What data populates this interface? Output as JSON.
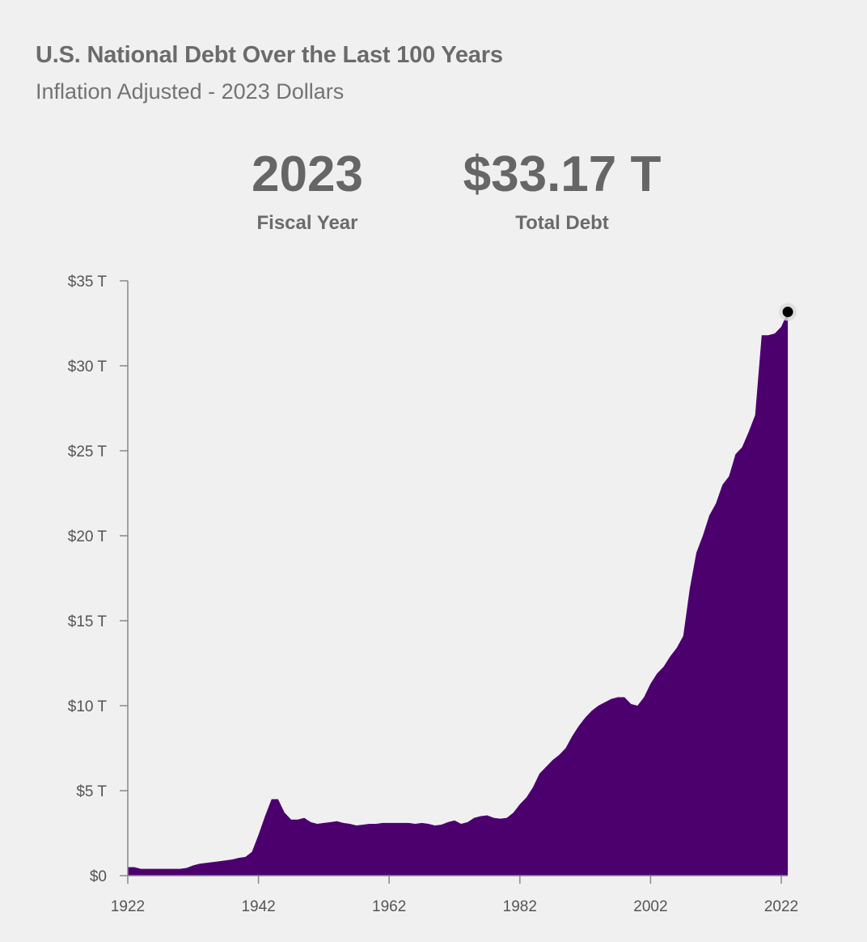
{
  "header": {
    "title": "U.S. National Debt Over the Last 100 Years",
    "subtitle": "Inflation Adjusted - 2023 Dollars"
  },
  "stats": {
    "year_value": "2023",
    "year_label": "Fiscal Year",
    "debt_value": "$33.17 T",
    "debt_label": "Total Debt"
  },
  "colors": {
    "area_fill": "#4b006e",
    "axis": "#888888",
    "marker": "#000000",
    "marker_halo": "#d9d9d9"
  },
  "chart_data": {
    "type": "area",
    "title": "U.S. National Debt Over the Last 100 Years",
    "subtitle": "Inflation Adjusted - 2023 Dollars",
    "xlabel": "",
    "ylabel": "",
    "xlim": [
      1922,
      2023
    ],
    "ylim": [
      0,
      35
    ],
    "x_ticks": [
      1922,
      1942,
      1962,
      1982,
      2002,
      2022
    ],
    "y_ticks": [
      0,
      5,
      10,
      15,
      20,
      25,
      30,
      35
    ],
    "y_tick_labels": [
      "$0",
      "$5 T",
      "$10 T",
      "$15 T",
      "$20 T",
      "$25 T",
      "$30 T",
      "$35 T"
    ],
    "grid": false,
    "highlight": {
      "x": 2023,
      "y": 33.17
    },
    "series": [
      {
        "name": "Total Debt",
        "unit": "trillions of 2023 dollars",
        "x": [
          1922,
          1923,
          1924,
          1925,
          1926,
          1927,
          1928,
          1929,
          1930,
          1931,
          1932,
          1933,
          1934,
          1935,
          1936,
          1937,
          1938,
          1939,
          1940,
          1941,
          1942,
          1943,
          1944,
          1945,
          1946,
          1947,
          1948,
          1949,
          1950,
          1951,
          1952,
          1953,
          1954,
          1955,
          1956,
          1957,
          1958,
          1959,
          1960,
          1961,
          1962,
          1963,
          1964,
          1965,
          1966,
          1967,
          1968,
          1969,
          1970,
          1971,
          1972,
          1973,
          1974,
          1975,
          1976,
          1977,
          1978,
          1979,
          1980,
          1981,
          1982,
          1983,
          1984,
          1985,
          1986,
          1987,
          1988,
          1989,
          1990,
          1991,
          1992,
          1993,
          1994,
          1995,
          1996,
          1997,
          1998,
          1999,
          2000,
          2001,
          2002,
          2003,
          2004,
          2005,
          2006,
          2007,
          2008,
          2009,
          2010,
          2011,
          2012,
          2013,
          2014,
          2015,
          2016,
          2017,
          2018,
          2019,
          2020,
          2021,
          2022,
          2023
        ],
        "values": [
          0.5,
          0.5,
          0.4,
          0.4,
          0.4,
          0.4,
          0.4,
          0.4,
          0.4,
          0.45,
          0.6,
          0.7,
          0.75,
          0.8,
          0.85,
          0.9,
          0.95,
          1.05,
          1.1,
          1.4,
          2.4,
          3.5,
          4.5,
          4.5,
          3.7,
          3.3,
          3.3,
          3.4,
          3.15,
          3.05,
          3.1,
          3.15,
          3.2,
          3.1,
          3.05,
          2.95,
          3.0,
          3.05,
          3.05,
          3.1,
          3.1,
          3.1,
          3.1,
          3.1,
          3.05,
          3.1,
          3.05,
          2.95,
          3.0,
          3.15,
          3.25,
          3.05,
          3.15,
          3.4,
          3.5,
          3.55,
          3.4,
          3.35,
          3.4,
          3.7,
          4.2,
          4.6,
          5.2,
          6.0,
          6.4,
          6.8,
          7.1,
          7.5,
          8.2,
          8.8,
          9.3,
          9.7,
          10.0,
          10.2,
          10.4,
          10.5,
          10.5,
          10.1,
          10.0,
          10.5,
          11.3,
          11.9,
          12.3,
          12.9,
          13.4,
          14.1,
          16.9,
          19.0,
          20.0,
          21.2,
          21.9,
          23.0,
          23.5,
          24.8,
          25.2,
          26.1,
          27.1,
          31.8,
          31.8,
          31.9,
          32.3,
          33.17
        ]
      }
    ]
  }
}
